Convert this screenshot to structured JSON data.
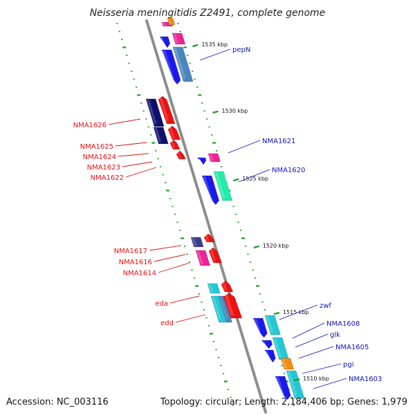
{
  "title": "Neisseria meningitidis Z2491, complete genome",
  "footer": {
    "accession": "Accession: NC_003116",
    "topology": "Topology: circular; Length: 2,184,406 bp; Genes: 1,979"
  },
  "colors": {
    "backbone": "#8c8c8c",
    "tick": "#1e9e1e",
    "reverse_label": "#dd1111",
    "forward_label": "#1111bb",
    "blue": "#1a1aee",
    "steelblue": "#4a86c0",
    "red": "#ee1111",
    "navy": "#10106e",
    "magenta": "#ee2299",
    "cyan": "#22c8d4",
    "mint": "#22eeaa",
    "orange": "#f08c10",
    "slate": "#3c3c8c"
  },
  "ruler": [
    {
      "label": "1535 kbp"
    },
    {
      "label": "1530 kbp"
    },
    {
      "label": "1525 kbp"
    },
    {
      "label": "1520 kbp"
    },
    {
      "label": "1515 kbp"
    },
    {
      "label": "1510 kbp"
    }
  ],
  "genes_left": [
    {
      "label": "NMA1626"
    },
    {
      "label": "NMA1625"
    },
    {
      "label": "NMA1624"
    },
    {
      "label": "NMA1623"
    },
    {
      "label": "NMA1622"
    },
    {
      "label": "NMA1617"
    },
    {
      "label": "NMA1616"
    },
    {
      "label": "NMA1614"
    },
    {
      "label": "eda"
    },
    {
      "label": "edd"
    }
  ],
  "genes_right": [
    {
      "label": "pepN"
    },
    {
      "label": "NMA1621"
    },
    {
      "label": "NMA1620"
    },
    {
      "label": "zwf"
    },
    {
      "label": "NMA1608"
    },
    {
      "label": "glk"
    },
    {
      "label": "NMA1605"
    },
    {
      "label": "pgi"
    },
    {
      "label": "NMA1603"
    }
  ]
}
